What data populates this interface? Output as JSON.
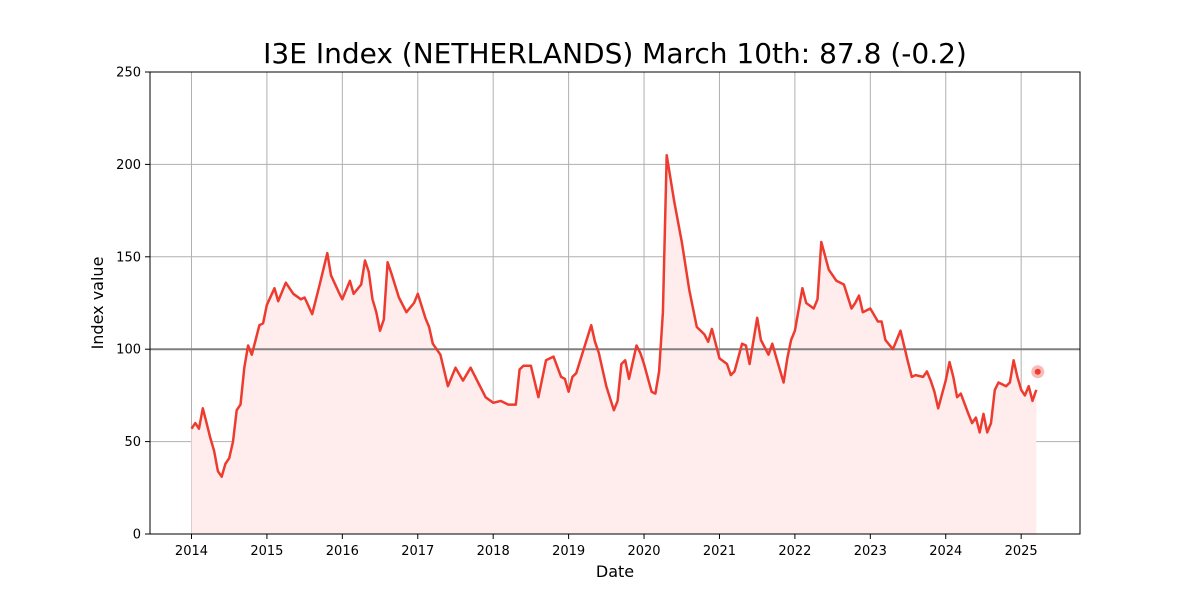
{
  "chart_data": {
    "type": "line",
    "title": "I3E Index (NETHERLANDS) March 10th: 87.8 (-0.2)",
    "xlabel": "Date",
    "ylabel": "Index value",
    "xlim": [
      2013.45,
      2025.78
    ],
    "ylim": [
      0,
      250
    ],
    "x_ticks": [
      2014,
      2015,
      2016,
      2017,
      2018,
      2019,
      2020,
      2021,
      2022,
      2023,
      2024,
      2025
    ],
    "x_tick_labels": [
      "2014",
      "2015",
      "2016",
      "2017",
      "2018",
      "2019",
      "2020",
      "2021",
      "2022",
      "2023",
      "2024",
      "2025"
    ],
    "y_ticks": [
      0,
      50,
      100,
      150,
      200,
      250
    ],
    "y_tick_labels": [
      "0",
      "50",
      "100",
      "150",
      "200",
      "250"
    ],
    "grid": true,
    "reference_line": {
      "y": 100,
      "color": "#808080"
    },
    "colors": {
      "line": "#ee3b2f",
      "fill": "#ffecec",
      "marker": "#ee3b2f"
    },
    "last_point": {
      "x": 2025.22,
      "y": 87.8
    },
    "series": [
      {
        "x": [
          2014.0,
          2014.05,
          2014.1,
          2014.15,
          2014.2,
          2014.25,
          2014.3,
          2014.35,
          2014.4,
          2014.45,
          2014.5,
          2014.55,
          2014.6,
          2014.65,
          2014.7,
          2014.75,
          2014.8,
          2014.85,
          2014.9,
          2014.95,
          2015.0,
          2015.1,
          2015.15,
          2015.25,
          2015.35,
          2015.45,
          2015.5,
          2015.6,
          2015.7,
          2015.8,
          2015.85,
          2015.95,
          2016.0,
          2016.1,
          2016.15,
          2016.25,
          2016.3,
          2016.35,
          2016.4,
          2016.45,
          2016.5,
          2016.55,
          2016.6,
          2016.65,
          2016.75,
          2016.85,
          2016.95,
          2017.0,
          2017.1,
          2017.15,
          2017.2,
          2017.3,
          2017.4,
          2017.5,
          2017.6,
          2017.7,
          2017.8,
          2017.9,
          2018.0,
          2018.1,
          2018.2,
          2018.3,
          2018.35,
          2018.4,
          2018.5,
          2018.6,
          2018.7,
          2018.8,
          2018.9,
          2018.95,
          2019.0,
          2019.05,
          2019.1,
          2019.2,
          2019.3,
          2019.35,
          2019.4,
          2019.5,
          2019.6,
          2019.65,
          2019.7,
          2019.75,
          2019.8,
          2019.9,
          2019.95,
          2020.0,
          2020.1,
          2020.15,
          2020.2,
          2020.25,
          2020.3,
          2020.4,
          2020.5,
          2020.6,
          2020.7,
          2020.8,
          2020.85,
          2020.9,
          2021.0,
          2021.1,
          2021.15,
          2021.2,
          2021.3,
          2021.35,
          2021.4,
          2021.5,
          2021.55,
          2021.65,
          2021.7,
          2021.75,
          2021.85,
          2021.9,
          2021.95,
          2022.0,
          2022.1,
          2022.15,
          2022.25,
          2022.3,
          2022.35,
          2022.45,
          2022.55,
          2022.65,
          2022.75,
          2022.8,
          2022.85,
          2022.9,
          2023.0,
          2023.1,
          2023.15,
          2023.2,
          2023.3,
          2023.4,
          2023.5,
          2023.55,
          2023.6,
          2023.7,
          2023.75,
          2023.8,
          2023.85,
          2023.9,
          2024.0,
          2024.05,
          2024.1,
          2024.15,
          2024.2,
          2024.3,
          2024.35,
          2024.4,
          2024.45,
          2024.5,
          2024.55,
          2024.6,
          2024.65,
          2024.7,
          2024.8,
          2024.85,
          2024.9,
          2024.95,
          2025.0,
          2025.05,
          2025.1,
          2025.15,
          2025.2
        ],
        "values": [
          57,
          60,
          57,
          68,
          60,
          52,
          45,
          34,
          31,
          38,
          41,
          50,
          67,
          70,
          90,
          102,
          97,
          105,
          113,
          114,
          124,
          133,
          126,
          136,
          130,
          127,
          128,
          119,
          135,
          152,
          140,
          131,
          127,
          137,
          130,
          135,
          148,
          142,
          127,
          120,
          110,
          116,
          147,
          141,
          128,
          120,
          125,
          130,
          117,
          112,
          103,
          97,
          80,
          90,
          83,
          90,
          82,
          74,
          71,
          72,
          70,
          70,
          89,
          91,
          91,
          74,
          94,
          96,
          85,
          84,
          77,
          85,
          87,
          100,
          113,
          104,
          98,
          80,
          67,
          72,
          92,
          94,
          84,
          102,
          98,
          92,
          77,
          76,
          88,
          120,
          205,
          180,
          158,
          132,
          112,
          108,
          104,
          111,
          95,
          92,
          86,
          88,
          103,
          102,
          92,
          117,
          105,
          97,
          103,
          96,
          82,
          95,
          105,
          110,
          133,
          125,
          122,
          127,
          158,
          143,
          137,
          135,
          122,
          125,
          129,
          120,
          122,
          115,
          115,
          105,
          100,
          110,
          93,
          85,
          86,
          85,
          88,
          83,
          77,
          68,
          83,
          93,
          85,
          74,
          76,
          65,
          60,
          63,
          55,
          65,
          55,
          60,
          78,
          82,
          80,
          82,
          94,
          85,
          78,
          75,
          80,
          72,
          78
        ]
      }
    ]
  }
}
